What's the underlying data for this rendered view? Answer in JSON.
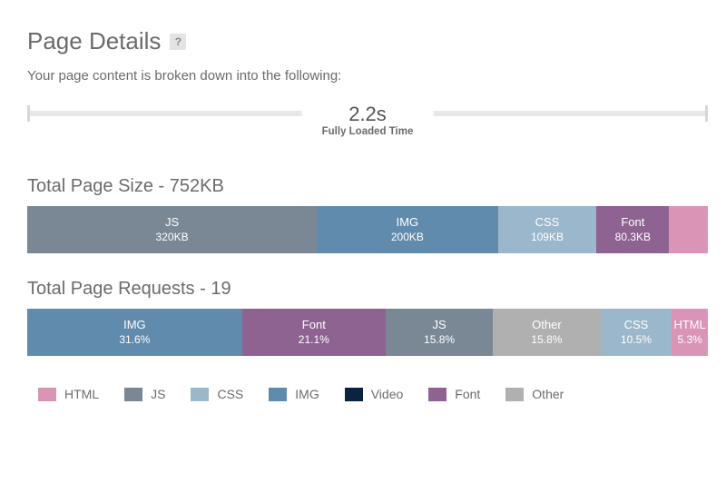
{
  "colors": {
    "html": "#d994b6",
    "js": "#7a8896",
    "css": "#9bb7cb",
    "img": "#618bad",
    "video": "#0c2340",
    "font": "#8e6391",
    "other": "#b0b0b0"
  },
  "header": {
    "title": "Page Details",
    "help": "?",
    "subtitle": "Your page content is broken down into the following:"
  },
  "timeline": {
    "value": "2.2s",
    "label": "Fully Loaded Time"
  },
  "size": {
    "title": "Total Page Size - 752KB",
    "segments": [
      {
        "key": "js",
        "label": "JS",
        "value": "320KB",
        "pct": 42.55
      },
      {
        "key": "img",
        "label": "IMG",
        "value": "200KB",
        "pct": 26.6
      },
      {
        "key": "css",
        "label": "CSS",
        "value": "109KB",
        "pct": 14.49
      },
      {
        "key": "font",
        "label": "Font",
        "value": "80.3KB",
        "pct": 10.68
      },
      {
        "key": "html",
        "label": "",
        "value": "",
        "pct": 5.68
      }
    ]
  },
  "requests": {
    "title": "Total Page Requests - 19",
    "segments": [
      {
        "key": "img",
        "label": "IMG",
        "value": "31.6%",
        "pct": 31.6
      },
      {
        "key": "font",
        "label": "Font",
        "value": "21.1%",
        "pct": 21.1
      },
      {
        "key": "js",
        "label": "JS",
        "value": "15.8%",
        "pct": 15.8
      },
      {
        "key": "other",
        "label": "Other",
        "value": "15.8%",
        "pct": 15.8
      },
      {
        "key": "css",
        "label": "CSS",
        "value": "10.5%",
        "pct": 10.5
      },
      {
        "key": "html",
        "label": "HTML",
        "value": "5.3%",
        "pct": 5.3
      }
    ]
  },
  "legend": [
    {
      "key": "html",
      "label": "HTML"
    },
    {
      "key": "js",
      "label": "JS"
    },
    {
      "key": "css",
      "label": "CSS"
    },
    {
      "key": "img",
      "label": "IMG"
    },
    {
      "key": "video",
      "label": "Video"
    },
    {
      "key": "font",
      "label": "Font"
    },
    {
      "key": "other",
      "label": "Other"
    }
  ]
}
